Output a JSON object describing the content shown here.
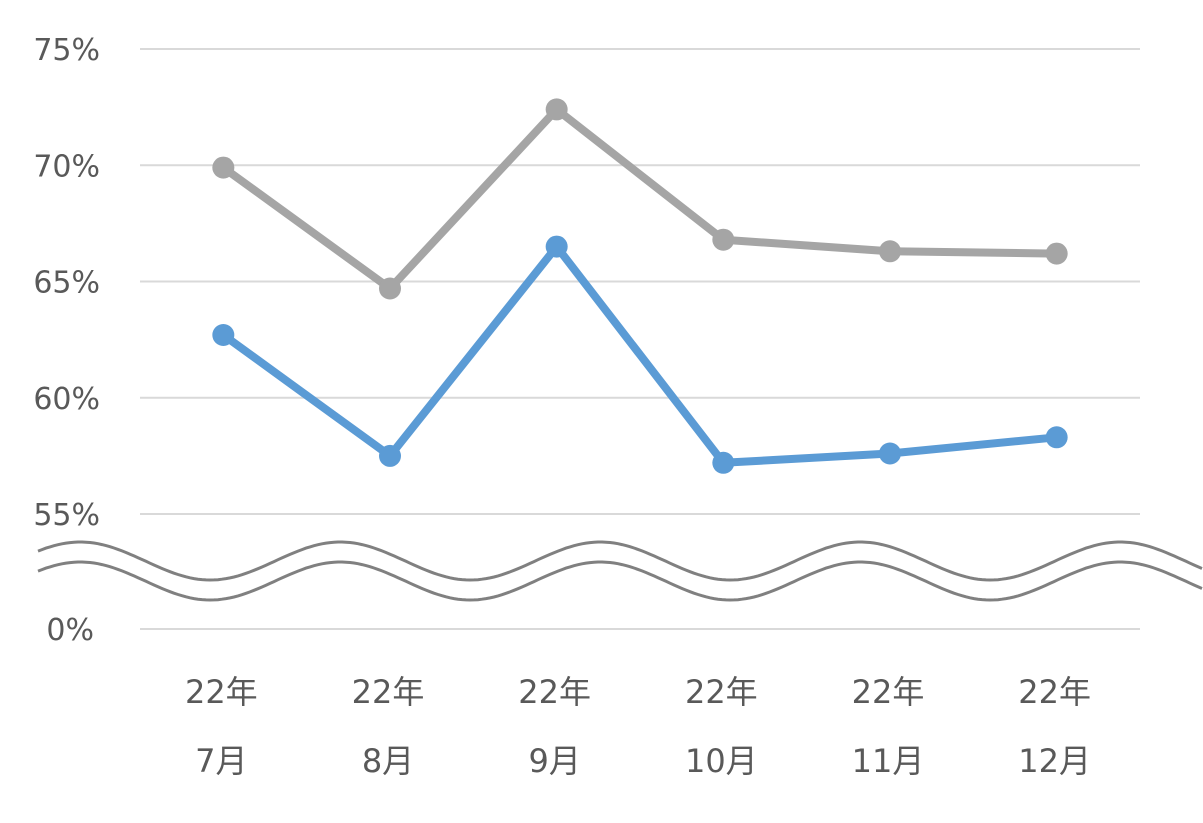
{
  "chart_data": {
    "type": "line",
    "title": "",
    "xlabel": "",
    "ylabel": "",
    "categories": [
      [
        "22年",
        "7月"
      ],
      [
        "22年",
        "8月"
      ],
      [
        "22年",
        "9月"
      ],
      [
        "22年",
        "10月"
      ],
      [
        "22年",
        "11月"
      ],
      [
        "22年",
        "12月"
      ]
    ],
    "y_tick_labels": [
      "0%",
      "55%",
      "60%",
      "65%",
      "70%",
      "75%"
    ],
    "y_axis_break": {
      "from": 0,
      "to": 55
    },
    "ylim": [
      55,
      75
    ],
    "grid": true,
    "legend": "none",
    "series": [
      {
        "values": [
          69.9,
          64.7,
          72.4,
          66.8,
          66.3,
          66.2
        ],
        "color": "#a5a5a5"
      },
      {
        "values": [
          62.7,
          57.5,
          66.5,
          57.2,
          57.6,
          58.3
        ],
        "color": "#5b9bd5"
      }
    ],
    "colors": {
      "grid": "#d9d9d9",
      "axis_text": "#595959",
      "break_mark": "#808080"
    }
  }
}
